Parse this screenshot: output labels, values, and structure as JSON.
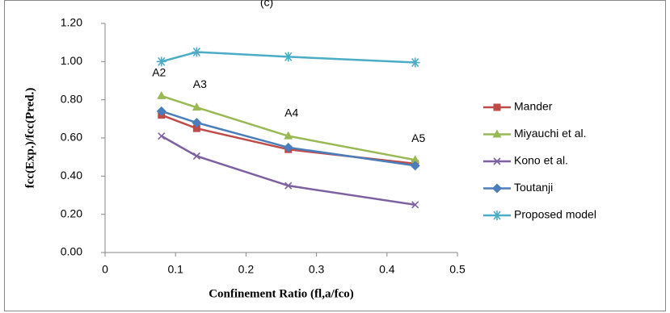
{
  "chart_data": {
    "type": "line",
    "title": "(c)",
    "x_label": "Confinement Ratio (fl,a/fco)",
    "y_label": "fcc(Exp.)/fcc(Pred.)",
    "x": [
      0.08,
      0.13,
      0.26,
      0.44
    ],
    "annotations": [
      "A2",
      "A3",
      "A4",
      "A5"
    ],
    "series": [
      {
        "name": "Mander",
        "color": "#be4b48",
        "marker": "square",
        "values": [
          0.72,
          0.65,
          0.54,
          0.465
        ]
      },
      {
        "name": "Miyauchi et al.",
        "color": "#98b954",
        "marker": "triangle",
        "values": [
          0.82,
          0.76,
          0.61,
          0.485
        ]
      },
      {
        "name": "Kono et al.",
        "color": "#7d60a0",
        "marker": "x",
        "values": [
          0.61,
          0.505,
          0.35,
          0.25
        ]
      },
      {
        "name": "Toutanji",
        "color": "#4a7ebb",
        "marker": "diamond",
        "values": [
          0.74,
          0.68,
          0.55,
          0.455
        ]
      },
      {
        "name": "Proposed model",
        "color": "#4bacc6",
        "marker": "star",
        "values": [
          1.0,
          1.05,
          1.025,
          0.995
        ]
      }
    ],
    "xlim": [
      0,
      0.5
    ],
    "xticks": [
      0,
      0.1,
      0.2,
      0.3,
      0.4,
      0.5
    ],
    "ylim": [
      0,
      1.2
    ],
    "yticks": [
      {
        "value": 0,
        "label": "0.00"
      },
      {
        "value": 0.2,
        "label": "0.20"
      },
      {
        "value": 0.4,
        "label": "0.40"
      },
      {
        "value": 0.6,
        "label": "0.60"
      },
      {
        "value": 0.8,
        "label": "0.80"
      },
      {
        "value": 1.0,
        "label": "1.00"
      },
      {
        "value": 1.2,
        "label": "1.20"
      }
    ],
    "grid": false,
    "legend": "right"
  }
}
